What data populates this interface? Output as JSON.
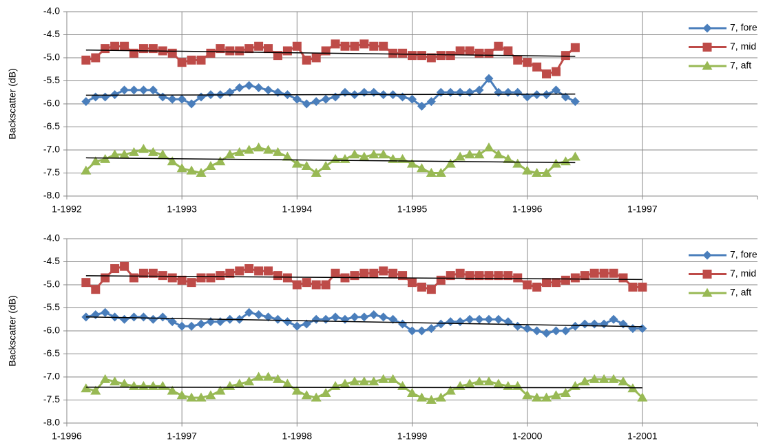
{
  "chart_data": [
    {
      "type": "line",
      "y_label": "Backscatter (dB)",
      "grid": true,
      "trendline": true,
      "legend": "right",
      "xlim": [
        "1-1992",
        "1-1998"
      ],
      "xticks": [
        "1-1992",
        "1-1993",
        "1-1994",
        "1-1995",
        "1-1996",
        "1-1997"
      ],
      "ylim": [
        -8,
        -4
      ],
      "yticks": [
        {
          "value": -4,
          "label": "-4.0"
        },
        -4.5,
        {
          "value": -5,
          "label": "-5.0"
        },
        -5.5,
        {
          "value": -6,
          "label": "-6.0"
        },
        -6.5,
        {
          "value": -7,
          "label": "-7.0"
        },
        -7.5,
        {
          "value": -8,
          "label": "-8.0"
        }
      ],
      "x": [
        "3-1992",
        "4-1992",
        "5-1992",
        "6-1992",
        "7-1992",
        "8-1992",
        "9-1992",
        "10-1992",
        "11-1992",
        "12-1992",
        "1-1993",
        "2-1993",
        "3-1993",
        "4-1993",
        "5-1993",
        "6-1993",
        "7-1993",
        "8-1993",
        "9-1993",
        "10-1993",
        "11-1993",
        "12-1993",
        "1-1994",
        "2-1994",
        "3-1994",
        "4-1994",
        "5-1994",
        "6-1994",
        "7-1994",
        "8-1994",
        "9-1994",
        "10-1994",
        "11-1994",
        "12-1994",
        "1-1995",
        "2-1995",
        "3-1995",
        "4-1995",
        "5-1995",
        "6-1995",
        "7-1995",
        "8-1995",
        "9-1995",
        "10-1995",
        "11-1995",
        "12-1995",
        "1-1996",
        "2-1996",
        "3-1996",
        "4-1996",
        "5-1996",
        "6-1996"
      ],
      "series": [
        {
          "name": "7, fore",
          "color": "#4a7ebb",
          "marker": "diamond",
          "values": [
            -5.95,
            -5.85,
            -5.85,
            -5.8,
            -5.7,
            -5.7,
            -5.7,
            -5.7,
            -5.85,
            -5.9,
            -5.9,
            -6.0,
            -5.85,
            -5.8,
            -5.8,
            -5.75,
            -5.65,
            -5.6,
            -5.65,
            -5.7,
            -5.75,
            -5.8,
            -5.9,
            -6.0,
            -5.95,
            -5.9,
            -5.85,
            -5.75,
            -5.8,
            -5.75,
            -5.75,
            -5.8,
            -5.8,
            -5.85,
            -5.9,
            -6.05,
            -5.95,
            -5.75,
            -5.75,
            -5.75,
            -5.75,
            -5.7,
            -5.45,
            -5.75,
            -5.75,
            -5.75,
            -5.85,
            -5.8,
            -5.8,
            -5.7,
            -5.85,
            -5.95
          ]
        },
        {
          "name": "7, mid",
          "color": "#be4b48",
          "marker": "square",
          "values": [
            -5.05,
            -5.0,
            -4.8,
            -4.75,
            -4.75,
            -4.9,
            -4.8,
            -4.8,
            -4.85,
            -4.9,
            -5.1,
            -5.05,
            -5.05,
            -4.9,
            -4.8,
            -4.85,
            -4.85,
            -4.8,
            -4.75,
            -4.8,
            -4.95,
            -4.85,
            -4.75,
            -5.05,
            -5.0,
            -4.85,
            -4.7,
            -4.75,
            -4.75,
            -4.7,
            -4.75,
            -4.75,
            -4.9,
            -4.9,
            -4.95,
            -4.95,
            -5.0,
            -4.95,
            -4.95,
            -4.85,
            -4.85,
            -4.9,
            -4.9,
            -4.75,
            -4.85,
            -5.05,
            -5.1,
            -5.2,
            -5.35,
            -5.3,
            -4.95,
            -4.78
          ]
        },
        {
          "name": "7, aft",
          "color": "#98b954",
          "marker": "triangle",
          "values": [
            -7.45,
            -7.25,
            -7.2,
            -7.1,
            -7.1,
            -7.05,
            -6.98,
            -7.05,
            -7.1,
            -7.25,
            -7.4,
            -7.45,
            -7.5,
            -7.35,
            -7.25,
            -7.1,
            -7.05,
            -7.0,
            -6.95,
            -7.0,
            -7.05,
            -7.15,
            -7.3,
            -7.35,
            -7.5,
            -7.35,
            -7.2,
            -7.2,
            -7.1,
            -7.15,
            -7.1,
            -7.1,
            -7.2,
            -7.2,
            -7.3,
            -7.4,
            -7.5,
            -7.5,
            -7.3,
            -7.15,
            -7.1,
            -7.1,
            -6.95,
            -7.1,
            -7.2,
            -7.3,
            -7.45,
            -7.5,
            -7.5,
            -7.3,
            -7.25,
            -7.15
          ]
        }
      ]
    },
    {
      "type": "line",
      "y_label": "Backscatter (dB)",
      "grid": true,
      "trendline": true,
      "legend": "right",
      "xlim": [
        "1-1996",
        "1-2002"
      ],
      "xticks": [
        "1-1996",
        "1-1997",
        "1-1998",
        "1-1999",
        "1-2000",
        "1-2001"
      ],
      "ylim": [
        -8,
        -4
      ],
      "yticks": [
        {
          "value": -4,
          "label": "-4.0"
        },
        -4.5,
        {
          "value": -5,
          "label": "-5.0"
        },
        -5.5,
        {
          "value": -6,
          "label": "-6.0"
        },
        -6.5,
        {
          "value": -7,
          "label": "-7.0"
        },
        -7.5,
        {
          "value": -8,
          "label": "-8.0"
        }
      ],
      "x": [
        "3-1996",
        "4-1996",
        "5-1996",
        "6-1996",
        "7-1996",
        "8-1996",
        "9-1996",
        "10-1996",
        "11-1996",
        "12-1996",
        "1-1997",
        "2-1997",
        "3-1997",
        "4-1997",
        "5-1997",
        "6-1997",
        "7-1997",
        "8-1997",
        "9-1997",
        "10-1997",
        "11-1997",
        "12-1997",
        "1-1998",
        "2-1998",
        "3-1998",
        "4-1998",
        "5-1998",
        "6-1998",
        "7-1998",
        "8-1998",
        "9-1998",
        "10-1998",
        "11-1998",
        "12-1998",
        "1-1999",
        "2-1999",
        "3-1999",
        "4-1999",
        "5-1999",
        "6-1999",
        "7-1999",
        "8-1999",
        "9-1999",
        "10-1999",
        "11-1999",
        "12-1999",
        "1-2000",
        "2-2000",
        "3-2000",
        "4-2000",
        "5-2000",
        "6-2000",
        "7-2000",
        "8-2000",
        "9-2000",
        "10-2000",
        "11-2000",
        "12-2000",
        "1-2001"
      ],
      "series": [
        {
          "name": "7, fore",
          "color": "#4a7ebb",
          "marker": "diamond",
          "values": [
            -5.7,
            -5.65,
            -5.6,
            -5.7,
            -5.75,
            -5.7,
            -5.7,
            -5.75,
            -5.7,
            -5.8,
            -5.9,
            -5.9,
            -5.85,
            -5.8,
            -5.8,
            -5.75,
            -5.75,
            -5.6,
            -5.65,
            -5.7,
            -5.75,
            -5.8,
            -5.9,
            -5.85,
            -5.75,
            -5.75,
            -5.7,
            -5.75,
            -5.7,
            -5.7,
            -5.65,
            -5.7,
            -5.75,
            -5.85,
            -6.0,
            -6.0,
            -5.95,
            -5.85,
            -5.8,
            -5.8,
            -5.75,
            -5.75,
            -5.75,
            -5.75,
            -5.8,
            -5.9,
            -5.95,
            -6.0,
            -6.05,
            -6.0,
            -6.0,
            -5.9,
            -5.85,
            -5.85,
            -5.85,
            -5.75,
            -5.85,
            -5.95,
            -5.95
          ]
        },
        {
          "name": "7, mid",
          "color": "#be4b48",
          "marker": "square",
          "values": [
            -4.95,
            -5.1,
            -4.85,
            -4.65,
            -4.6,
            -4.85,
            -4.75,
            -4.75,
            -4.8,
            -4.85,
            -4.9,
            -4.95,
            -4.85,
            -4.85,
            -4.8,
            -4.75,
            -4.7,
            -4.65,
            -4.7,
            -4.7,
            -4.8,
            -4.85,
            -5.0,
            -4.95,
            -5.0,
            -5.0,
            -4.75,
            -4.85,
            -4.8,
            -4.75,
            -4.75,
            -4.7,
            -4.75,
            -4.8,
            -4.95,
            -5.05,
            -5.1,
            -4.9,
            -4.8,
            -4.75,
            -4.8,
            -4.8,
            -4.8,
            -4.8,
            -4.8,
            -4.85,
            -5.0,
            -5.05,
            -4.95,
            -4.95,
            -4.9,
            -4.85,
            -4.8,
            -4.75,
            -4.75,
            -4.75,
            -4.85,
            -5.05,
            -5.05
          ]
        },
        {
          "name": "7, aft",
          "color": "#98b954",
          "marker": "triangle",
          "values": [
            -7.25,
            -7.3,
            -7.05,
            -7.1,
            -7.15,
            -7.2,
            -7.2,
            -7.2,
            -7.2,
            -7.3,
            -7.4,
            -7.45,
            -7.45,
            -7.4,
            -7.3,
            -7.2,
            -7.15,
            -7.1,
            -7.0,
            -7.0,
            -7.05,
            -7.15,
            -7.3,
            -7.4,
            -7.45,
            -7.35,
            -7.2,
            -7.15,
            -7.1,
            -7.1,
            -7.1,
            -7.05,
            -7.05,
            -7.2,
            -7.35,
            -7.45,
            -7.5,
            -7.45,
            -7.3,
            -7.2,
            -7.15,
            -7.1,
            -7.1,
            -7.15,
            -7.2,
            -7.2,
            -7.4,
            -7.45,
            -7.45,
            -7.4,
            -7.35,
            -7.2,
            -7.1,
            -7.05,
            -7.05,
            -7.05,
            -7.1,
            -7.25,
            -7.45
          ]
        }
      ]
    }
  ]
}
